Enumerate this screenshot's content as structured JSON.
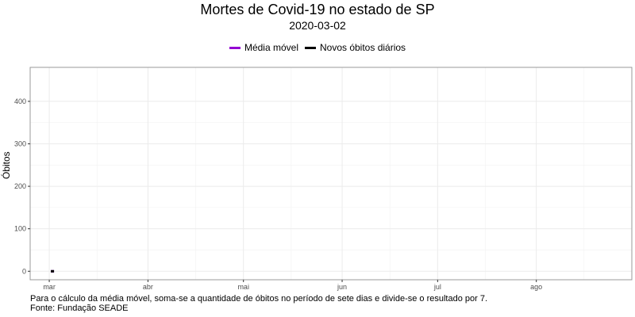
{
  "chart_data": {
    "type": "line",
    "title": "Mortes de Covid-19 no estado de SP",
    "subtitle": "2020-03-02",
    "ylabel": "Óbitos",
    "xlabel": "",
    "x_ticks": [
      "mar",
      "abr",
      "mai",
      "jun",
      "jul",
      "ago"
    ],
    "x_tick_dates": [
      "2020-03-01",
      "2020-04-01",
      "2020-05-01",
      "2020-06-01",
      "2020-07-01",
      "2020-08-01"
    ],
    "y_ticks": [
      0,
      100,
      200,
      300,
      400
    ],
    "xlim": [
      "2020-02-24",
      "2020-08-31"
    ],
    "ylim": [
      -20,
      480
    ],
    "grid": true,
    "legend_position": "top",
    "series": [
      {
        "name": "Média móvel",
        "color": "#9400D3",
        "points": [
          {
            "x": "2020-03-02",
            "y": 0
          }
        ]
      },
      {
        "name": "Novos óbitos diários",
        "color": "#000000",
        "points": [
          {
            "x": "2020-03-02",
            "y": 0
          }
        ]
      }
    ]
  },
  "caption": {
    "line1": "Para o cálculo da média móvel, soma-se a quantidade de óbitos no período de sete dias e divide-se o resultado por 7.",
    "line2": "Fonte: Fundação SEADE"
  }
}
